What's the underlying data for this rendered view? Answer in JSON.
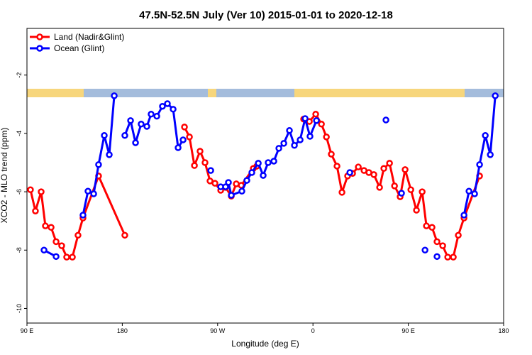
{
  "chart_data": {
    "type": "line",
    "title": "47.5N-52.5N July (Ver 10)   2015-01-01 to 2020-12-18",
    "x_label": "Longitude (deg E)",
    "y_label": "XCO2 - MLO trend (ppm)",
    "xlim": [
      90,
      540
    ],
    "xticks": [
      {
        "value": 90,
        "label": "90 E"
      },
      180,
      {
        "value": 270,
        "label": "90 W"
      },
      {
        "value": 360,
        "label": "0"
      },
      {
        "value": 450,
        "label": "90 E"
      },
      {
        "value": 540,
        "label": "180"
      }
    ],
    "ylim": [
      -10.5,
      -0.4
    ],
    "yticks": [
      -10,
      -8,
      -6,
      -4,
      -2
    ],
    "legend": "top-left",
    "series": [
      {
        "name": "Land (Nadir&Glint)",
        "color": "#ff0000",
        "x": [
          93.3,
          98.0,
          103.4,
          107.4,
          112.8,
          117.5,
          122.8,
          127.5,
          132.9,
          138.2,
          142.9,
          157.6,
          182.4,
          null,
          238.7,
          243.4,
          248.1,
          253.4,
          258.1,
          262.8,
          267.5,
          272.9,
          277.5,
          282.9,
          287.6,
          292.3,
          303.7,
          307.0,
          null,
          351.2,
          356.6,
          362.6,
          368.0,
          372.7,
          377.3,
          382.7,
          387.4,
          392.7,
          397.4,
          402.8,
          408.2,
          412.8,
          417.5,
          422.9,
          426.9,
          432.3,
          437.0,
          442.3,
          447.0,
          452.4,
          457.7,
          463.1,
          467.1,
          472.4,
          477.1,
          482.5,
          487.2,
          492.5,
          497.2,
          502.6,
          517.3
        ],
        "values": [
          -5.93,
          -6.66,
          -6.0,
          -7.17,
          -7.22,
          -7.71,
          -7.85,
          -8.24,
          -8.24,
          -7.49,
          -6.9,
          -5.46,
          -7.49,
          null,
          -3.78,
          -4.12,
          -5.1,
          -4.61,
          -5.0,
          -5.63,
          -5.71,
          -5.95,
          -5.85,
          -6.15,
          -5.73,
          -5.78,
          -5.2,
          -5.12,
          null,
          -3.51,
          -3.59,
          -3.34,
          -3.68,
          -4.12,
          -4.71,
          -5.12,
          -6.02,
          -5.46,
          -5.37,
          -5.15,
          -5.27,
          -5.34,
          -5.41,
          -5.85,
          -5.2,
          -5.02,
          -5.8,
          -6.17,
          -5.24,
          -5.93,
          -6.63,
          -6.0,
          -7.17,
          -7.22,
          -7.71,
          -7.85,
          -8.24,
          -8.24,
          -7.49,
          -6.9,
          -5.46
        ]
      },
      {
        "name": "Ocean (Glint)",
        "color": "#0000ff",
        "x": [
          106.1,
          117.5,
          null,
          142.9,
          147.6,
          153.0,
          157.6,
          163.0,
          167.7,
          172.4,
          null,
          182.4,
          187.8,
          192.5,
          197.8,
          203.2,
          207.2,
          212.6,
          217.9,
          222.6,
          228.0,
          232.7,
          237.4,
          null,
          263.5,
          null,
          272.9,
          277.5,
          280.2,
          282.9,
          292.9,
          297.6,
          302.3,
          308.4,
          313.0,
          317.7,
          323.1,
          327.8,
          332.5,
          337.8,
          342.5,
          347.9,
          352.6,
          357.2,
          363.3,
          null,
          394.8,
          null,
          428.9,
          null,
          443.6,
          null,
          465.8,
          null,
          477.1,
          null,
          502.6,
          507.3,
          512.6,
          517.3,
          522.7,
          527.4,
          532.1
        ],
        "values": [
          -8.0,
          -8.22,
          null,
          -6.8,
          -5.98,
          -6.07,
          -5.07,
          -4.07,
          -4.73,
          -2.71,
          null,
          -4.07,
          -3.56,
          -4.32,
          -3.68,
          -3.76,
          -3.34,
          -3.41,
          -3.07,
          -2.98,
          -3.17,
          -4.49,
          -4.22,
          null,
          -5.27,
          null,
          -5.83,
          -5.83,
          -5.68,
          -6.12,
          -5.98,
          -5.61,
          -5.34,
          -5.02,
          -5.44,
          -5.0,
          -4.95,
          -4.51,
          -4.34,
          -3.9,
          -4.41,
          -4.22,
          -3.49,
          -4.1,
          -3.56,
          null,
          -5.34,
          null,
          -3.54,
          null,
          -6.05,
          null,
          -8.0,
          null,
          -8.22,
          null,
          -6.8,
          -5.98,
          -6.07,
          -5.07,
          -4.07,
          -4.73,
          -2.71
        ]
      }
    ]
  }
}
